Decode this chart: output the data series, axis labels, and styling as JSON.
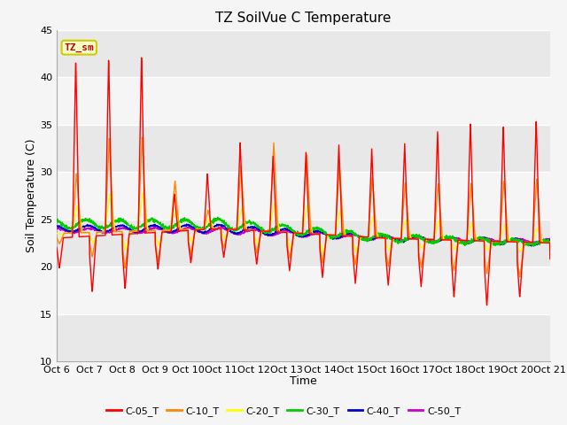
{
  "title": "TZ SoilVue C Temperature",
  "xlabel": "Time",
  "ylabel": "Soil Temperature (C)",
  "ylim": [
    10,
    45
  ],
  "xtick_labels": [
    "Oct 6",
    "Oct 7",
    "Oct 8",
    "Oct 9",
    "Oct 10",
    "Oct 11",
    "Oct 12",
    "Oct 13",
    "Oct 14",
    "Oct 15",
    "Oct 16",
    "Oct 17",
    "Oct 18",
    "Oct 19",
    "Oct 20",
    "Oct 21"
  ],
  "series_colors": {
    "C-05_T": "#ff0000",
    "C-10_T": "#ff8800",
    "C-20_T": "#ffff00",
    "C-30_T": "#00cc00",
    "C-40_T": "#0000cc",
    "C-50_T": "#cc00cc"
  },
  "legend_label": "TZ_sm",
  "legend_box_facecolor": "#ffffcc",
  "legend_box_edgecolor": "#cccc00",
  "bg_color": "#f5f5f5",
  "band_color_light": "#e8e8e8",
  "band_color_white": "#f5f5f5",
  "title_fontsize": 11,
  "axis_label_fontsize": 9,
  "tick_fontsize": 8,
  "legend_fontsize": 8
}
